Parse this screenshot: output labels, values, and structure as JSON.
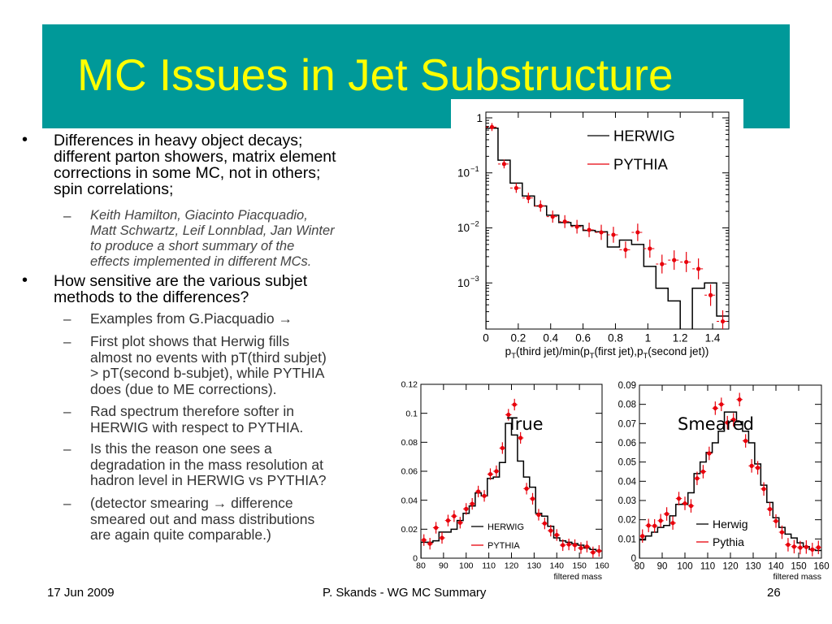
{
  "slide": {
    "title": "MC Issues in Jet Substructure",
    "bullets": [
      {
        "lines": [
          "Differences in heavy object decays;",
          "different parton showers, matrix element",
          "corrections in some MC, not in others;",
          "spin correlations;"
        ],
        "subs": [
          {
            "lines": [
              "Keith Hamilton, Giacinto Piacquadio,",
              "Matt Schwartz, Leif Lonnblad, Jan Winter",
              "to produce a short summary of the",
              "effects implemented in different MCs."
            ]
          }
        ]
      },
      {
        "lines": [
          "How sensitive are the various subjet",
          "methods to the differences?"
        ],
        "subs": [
          {
            "lines": [
              "Examples from G.Piacquadio →"
            ]
          },
          {
            "lines": [
              "First plot shows that Herwig fills",
              "almost no events with pT(third subjet)",
              "> pT(second b-subjet), while PYTHIA",
              "does (due to ME corrections)."
            ]
          },
          {
            "lines": [
              "Rad spectrum  therefore softer in",
              "HERWIG with respect to PYTHIA."
            ]
          },
          {
            "lines": [
              "Is this the reason one sees a",
              "degradation in the mass resolution at",
              "hadron level in HERWIG vs PYTHIA?"
            ]
          },
          {
            "lines": [
              "(detector smearing → difference",
              "smeared out and mass distributions",
              "are again quite comparable.)"
            ]
          }
        ]
      }
    ],
    "bullet_symbol": "•",
    "dash_symbol": "–",
    "plot_tags": {
      "true": "True",
      "smeared": "Smeared"
    },
    "footer": {
      "date": "17 Jun 2009",
      "center": "P. Skands - WG MC Summary",
      "page": "26"
    },
    "colors": {
      "header": "#009999",
      "title": "#ffff00",
      "herwig": "#000000",
      "pythia": "#e8000b"
    }
  },
  "chart_data": [
    {
      "type": "histogram",
      "title": "",
      "xlabel": "p_T(third jet)/min(p_T(first jet),p_T(second jet))",
      "ylabel": "",
      "xlim": [
        0,
        1.5
      ],
      "ylim": [
        0.000145,
        1.27
      ],
      "yscale": "log",
      "x_ticks": [
        "0",
        "0.2",
        "0.4",
        "0.6",
        "0.8",
        "1",
        "1.2",
        "1.4"
      ],
      "x_tick_values": [
        0,
        0.2,
        0.4,
        0.6,
        0.8,
        1,
        1.2,
        1.4
      ],
      "y_ticks": [
        {
          "value": 1,
          "base": "1",
          "exp": ""
        },
        {
          "value": 0.1,
          "base": "10",
          "exp": "−1"
        },
        {
          "value": 0.01,
          "base": "10",
          "exp": "−2"
        },
        {
          "value": 0.001,
          "base": "10",
          "exp": "−3"
        }
      ],
      "legend": {
        "position": "top-right",
        "entries": [
          "HERWIG",
          "PYTHIA"
        ]
      },
      "bin_width": 0.075,
      "series": [
        {
          "name": "HERWIG",
          "style": "step",
          "values": [
            0.65,
            0.17,
            0.065,
            0.038,
            0.025,
            0.017,
            0.0125,
            0.011,
            0.009,
            0.0085,
            0.0045,
            0.006,
            0.005,
            0.002,
            0.0008,
            0.00047,
            0,
            0.0008,
            0.001,
            0.00025
          ]
        },
        {
          "name": "PYTHIA",
          "style": "points",
          "values": [
            0.68,
            0.145,
            0.053,
            0.035,
            0.025,
            0.016,
            0.013,
            0.0105,
            0.0092,
            0.0083,
            0.0075,
            0.004,
            0.0083,
            0.0042,
            0.0022,
            0.0026,
            0.0024,
            0.0018,
            0.0006,
            0.0002
          ]
        }
      ]
    },
    {
      "type": "histogram",
      "title": "True",
      "xlabel": "filtered mass",
      "ylabel": "",
      "xlim": [
        80,
        160
      ],
      "ylim": [
        0,
        0.12
      ],
      "yscale": "linear",
      "x_ticks": [
        "80",
        "90",
        "100",
        "110",
        "120",
        "130",
        "140",
        "150",
        "160"
      ],
      "x_tick_values": [
        80,
        90,
        100,
        110,
        120,
        130,
        140,
        150,
        160
      ],
      "y_ticks": [
        {
          "value": 0,
          "base": "0",
          "exp": ""
        },
        {
          "value": 0.02,
          "base": "0.02",
          "exp": ""
        },
        {
          "value": 0.04,
          "base": "0.04",
          "exp": ""
        },
        {
          "value": 0.06,
          "base": "0.06",
          "exp": ""
        },
        {
          "value": 0.08,
          "base": "0.08",
          "exp": ""
        },
        {
          "value": 0.1,
          "base": "0.1",
          "exp": ""
        },
        {
          "value": 0.12,
          "base": "0.12",
          "exp": ""
        }
      ],
      "legend": {
        "position": "bottom-center",
        "entries": [
          "HERWIG",
          "PYTHIA"
        ]
      },
      "bin_width": 2.6667,
      "series": [
        {
          "name": "HERWIG",
          "style": "step",
          "values": [
            0.011,
            0.011,
            0.012,
            0.018,
            0.018,
            0.02,
            0.026,
            0.031,
            0.036,
            0.045,
            0.043,
            0.055,
            0.056,
            0.066,
            0.093,
            0.085,
            0.067,
            0.056,
            0.049,
            0.031,
            0.029,
            0.022,
            0.014,
            0.012,
            0.011,
            0.01,
            0.009,
            0.007,
            0.006,
            0.005
          ]
        },
        {
          "name": "PYTHIA",
          "style": "points",
          "values": [
            0.0125,
            0.01,
            0.021,
            0.014,
            0.026,
            0.029,
            0.0245,
            0.034,
            0.0375,
            0.046,
            0.043,
            0.058,
            0.06,
            0.076,
            0.099,
            0.106,
            0.083,
            0.048,
            0.041,
            0.03,
            0.024,
            0.019,
            0.016,
            0.009,
            0.0095,
            0.009,
            0.007,
            0.008,
            0.004,
            0.005
          ]
        }
      ]
    },
    {
      "type": "histogram",
      "title": "Smeared",
      "xlabel": "filtered mass",
      "ylabel": "",
      "xlim": [
        80,
        160
      ],
      "ylim": [
        0,
        0.09
      ],
      "yscale": "linear",
      "x_ticks": [
        "80",
        "90",
        "100",
        "110",
        "120",
        "130",
        "140",
        "150",
        "160"
      ],
      "x_tick_values": [
        80,
        90,
        100,
        110,
        120,
        130,
        140,
        150,
        160
      ],
      "y_ticks": [
        {
          "value": 0,
          "base": "0",
          "exp": ""
        },
        {
          "value": 0.01,
          "base": "0.01",
          "exp": ""
        },
        {
          "value": 0.02,
          "base": "0.02",
          "exp": ""
        },
        {
          "value": 0.03,
          "base": "0.03",
          "exp": ""
        },
        {
          "value": 0.04,
          "base": "0.04",
          "exp": ""
        },
        {
          "value": 0.05,
          "base": "0.05",
          "exp": ""
        },
        {
          "value": 0.06,
          "base": "0.06",
          "exp": ""
        },
        {
          "value": 0.07,
          "base": "0.07",
          "exp": ""
        },
        {
          "value": 0.08,
          "base": "0.08",
          "exp": ""
        },
        {
          "value": 0.09,
          "base": "0.09",
          "exp": ""
        }
      ],
      "legend": {
        "position": "bottom-center",
        "entries": [
          "Herwig",
          "Pythia"
        ]
      },
      "bin_width": 2.6667,
      "series": [
        {
          "name": "Herwig",
          "style": "step",
          "values": [
            0.0095,
            0.0115,
            0.0135,
            0.016,
            0.017,
            0.022,
            0.028,
            0.028,
            0.034,
            0.044,
            0.05,
            0.055,
            0.06,
            0.066,
            0.076,
            0.076,
            0.071,
            0.066,
            0.06,
            0.049,
            0.038,
            0.029,
            0.021,
            0.016,
            0.0125,
            0.0105,
            0.008,
            0.006,
            0.0045,
            0.004
          ]
        },
        {
          "name": "Pythia",
          "style": "points",
          "values": [
            0.0115,
            0.017,
            0.0168,
            0.0195,
            0.023,
            0.0183,
            0.031,
            0.0285,
            0.0272,
            0.0415,
            0.045,
            0.0545,
            0.078,
            0.08,
            0.0705,
            0.072,
            0.0825,
            0.061,
            0.048,
            0.047,
            0.036,
            0.0255,
            0.0193,
            0.0135,
            0.007,
            0.006,
            0.0055,
            0.0058,
            0.0045,
            0.0056
          ]
        }
      ]
    }
  ]
}
